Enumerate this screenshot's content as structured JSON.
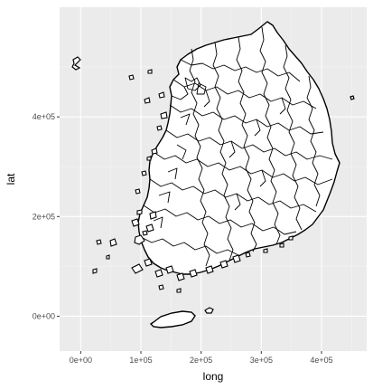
{
  "chart_data": {
    "type": "map",
    "xlabel": "long",
    "ylabel": "lat",
    "x_ticks": [
      {
        "value": 0,
        "label": "0e+00"
      },
      {
        "value": 100000,
        "label": "1e+05"
      },
      {
        "value": 200000,
        "label": "2e+05"
      },
      {
        "value": 300000,
        "label": "3e+05"
      },
      {
        "value": 400000,
        "label": "4e+05"
      }
    ],
    "y_ticks": [
      {
        "value": 0,
        "label": "0e+00"
      },
      {
        "value": 200000,
        "label": "2e+05"
      },
      {
        "value": 400000,
        "label": "4e+05"
      }
    ],
    "xlim": [
      -35000,
      475000
    ],
    "ylim": [
      -70000,
      620000
    ],
    "grid": true,
    "colors": {
      "panel_bg": "#ebebeb",
      "grid_major": "#ffffff",
      "region_fill": "#ffffff",
      "region_stroke": "#000000"
    }
  }
}
